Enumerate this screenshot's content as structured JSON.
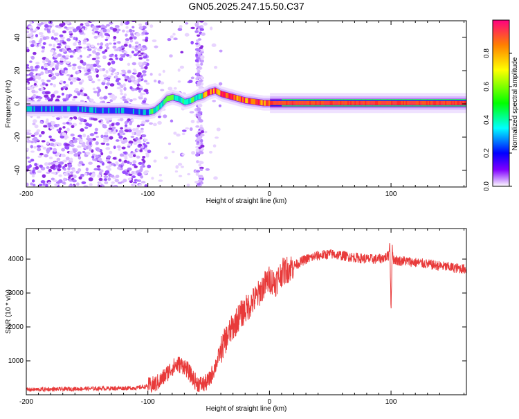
{
  "title": "GN05.2025.247.15.50.C37",
  "chart_data": [
    {
      "type": "heatmap",
      "name": "spectrogram",
      "xlabel": "Height of straight line (km)",
      "ylabel": "Frequency (Hz)",
      "xlim": [
        -200,
        162
      ],
      "ylim": [
        -50,
        50
      ],
      "x_ticks": [
        -200,
        -100,
        0,
        100
      ],
      "y_ticks": [
        -40,
        -20,
        0,
        20,
        40
      ],
      "ridge_x": [
        -200,
        -180,
        -160,
        -140,
        -120,
        -105,
        -100,
        -95,
        -90,
        -85,
        -80,
        -75,
        -70,
        -65,
        -60,
        -55,
        -50,
        -45,
        -40,
        -35,
        -30,
        -25,
        -20,
        -15,
        -10,
        -5,
        0,
        20,
        60,
        100,
        162
      ],
      "ridge_freq": [
        -3,
        -3,
        -3,
        -4,
        -4,
        -5,
        -5,
        -4,
        -1,
        3,
        4,
        3,
        1,
        2,
        4,
        5,
        7,
        8,
        6,
        5,
        4,
        3,
        2,
        1.5,
        1,
        0.5,
        0.5,
        0.5,
        0.5,
        0.5,
        0.5
      ],
      "colorbar": {
        "label": "Normalized spectral amplitude",
        "range": [
          0,
          1
        ],
        "ticks": [
          0.0,
          0.2,
          0.4,
          0.6,
          0.8
        ]
      }
    },
    {
      "type": "line",
      "name": "snr",
      "xlabel": "Height of straight line (km)",
      "ylabel": "SNR (10 * v/v)",
      "xlim": [
        -200,
        162
      ],
      "ylim": [
        0,
        4900
      ],
      "x_ticks": [
        -200,
        -100,
        0,
        100
      ],
      "y_ticks": [
        1000,
        2000,
        3000,
        4000
      ],
      "color": "#e83a3a",
      "x": [
        -200,
        -150,
        -110,
        -100,
        -95,
        -90,
        -85,
        -80,
        -75,
        -70,
        -65,
        -60,
        -55,
        -50,
        -45,
        -40,
        -35,
        -30,
        -25,
        -20,
        -15,
        -10,
        -5,
        0,
        5,
        10,
        15,
        20,
        25,
        30,
        40,
        50,
        60,
        70,
        80,
        90,
        95,
        98,
        99,
        100,
        101,
        102,
        105,
        110,
        120,
        130,
        140,
        150,
        162
      ],
      "y": [
        150,
        180,
        200,
        250,
        300,
        400,
        600,
        800,
        900,
        850,
        600,
        350,
        300,
        400,
        800,
        1300,
        1700,
        2000,
        2300,
        2500,
        2700,
        2900,
        3200,
        3400,
        3300,
        3600,
        3700,
        3800,
        3900,
        4000,
        4100,
        4150,
        4100,
        4050,
        4000,
        4000,
        4050,
        4100,
        4500,
        2500,
        4300,
        4000,
        3950,
        3950,
        3900,
        3850,
        3800,
        3750,
        3700
      ]
    }
  ]
}
